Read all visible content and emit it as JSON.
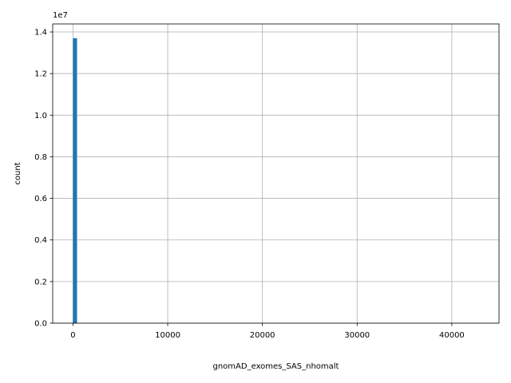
{
  "chart_data": {
    "type": "histogram",
    "x_label": "gnomAD_exomes_SAS_nhomalt",
    "y_label": "count",
    "y_offset_text": "1e7",
    "color": "#1f77b4",
    "grid": true,
    "bins": [
      0,
      428.4,
      856.8,
      1285.2,
      1713.6,
      2142,
      2570.4,
      2998.8,
      3427.2,
      3855.6,
      4284,
      4712.4,
      5140.8,
      5569.2,
      5997.6,
      6426,
      6854.4,
      7282.8,
      7711.2,
      8139.6,
      8568,
      8996.4,
      9424.8,
      9853.2,
      10281.6,
      10710,
      11138.4,
      11566.8,
      11995.2,
      12423.6,
      12852,
      13280.4,
      13708.8,
      14137.2,
      14565.6,
      14994,
      15422.4,
      15850.8,
      16279.2,
      16707.6,
      17136,
      17564.4,
      17992.8,
      18421.2,
      18849.6,
      19278,
      19706.4,
      20134.8,
      20563.2,
      20991.6,
      21420,
      21848.4,
      22276.8,
      22705.2,
      23133.6,
      23562,
      23990.4,
      24418.8,
      24847.2,
      25275.6,
      25704,
      26132.4,
      26560.8,
      26989.2,
      27417.6,
      27846,
      28274.4,
      28702.8,
      29131.2,
      29559.6,
      29988,
      30416.4,
      30844.8,
      31273.2,
      31701.6,
      32130,
      32558.4,
      32986.8,
      33415.2,
      33843.6,
      34272,
      34700.4,
      35128.8,
      35557.2,
      35985.6,
      36414,
      36842.4,
      37270.8,
      37699.2,
      38127.6,
      38556,
      38984.4,
      39412.8,
      39841.2,
      40269.6,
      40698,
      41126.4,
      41554.8,
      41983.2,
      42411.6,
      42840
    ],
    "counts": [
      13700000,
      0,
      0,
      0,
      0,
      0,
      0,
      0,
      0,
      0,
      0,
      0,
      0,
      0,
      0,
      0,
      0,
      0,
      0,
      0,
      0,
      0,
      0,
      0,
      0,
      0,
      0,
      0,
      0,
      0,
      0,
      0,
      0,
      0,
      0,
      0,
      0,
      0,
      0,
      0,
      0,
      0,
      0,
      0,
      0,
      0,
      0,
      0,
      0,
      0,
      0,
      0,
      0,
      0,
      0,
      0,
      0,
      0,
      0,
      0,
      0,
      0,
      0,
      0,
      0,
      0,
      0,
      0,
      0,
      0,
      0,
      0,
      0,
      0,
      0,
      0,
      0,
      0,
      0,
      0,
      0,
      0,
      0,
      0,
      0,
      0,
      0,
      0,
      0,
      0,
      0,
      0,
      0,
      0,
      0,
      0,
      0,
      0,
      0,
      0
    ],
    "xlim": [
      -2142,
      44982
    ],
    "xticks": [
      0,
      10000,
      20000,
      30000,
      40000
    ],
    "ylim": [
      0,
      14385000
    ],
    "yticks": [
      {
        "value": 0,
        "label": "0.0"
      },
      {
        "value": 2000000,
        "label": "0.2"
      },
      {
        "value": 4000000,
        "label": "0.4"
      },
      {
        "value": 6000000,
        "label": "0.6"
      },
      {
        "value": 8000000,
        "label": "0.8"
      },
      {
        "value": 10000000,
        "label": "1.0"
      },
      {
        "value": 12000000,
        "label": "1.2"
      },
      {
        "value": 14000000,
        "label": "1.4"
      }
    ]
  }
}
